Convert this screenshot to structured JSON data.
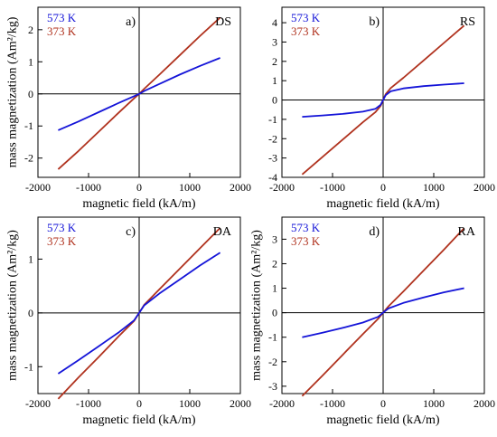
{
  "colors": {
    "s573": "#1414d8",
    "s373": "#b0321e",
    "axis": "#000000"
  },
  "chart_data": [
    {
      "type": "line",
      "letter": "a)",
      "code": "DS",
      "xlabel": "magnetic field (kA/m)",
      "ylabel": "mass magnetization (Am²/kg)",
      "xlim": [
        -2000,
        2000
      ],
      "ylim": [
        -2.6,
        2.7
      ],
      "xticks": [
        -2000,
        -1000,
        0,
        1000,
        2000
      ],
      "yticks": [
        -2,
        -1,
        0,
        1,
        2
      ],
      "series": [
        {
          "name": "573 K",
          "x": [
            -1600,
            -1200,
            -800,
            -400,
            -100,
            0,
            100,
            400,
            800,
            1200,
            1600
          ],
          "y": [
            -1.13,
            -0.86,
            -0.57,
            -0.28,
            -0.07,
            0,
            0.09,
            0.31,
            0.6,
            0.87,
            1.12
          ]
        },
        {
          "name": "373 K",
          "x": [
            -1600,
            -1200,
            -800,
            -400,
            -100,
            0,
            100,
            400,
            800,
            1200,
            1600
          ],
          "y": [
            -2.35,
            -1.78,
            -1.18,
            -0.58,
            -0.14,
            0,
            0.16,
            0.6,
            1.2,
            1.8,
            2.38
          ]
        }
      ]
    },
    {
      "type": "line",
      "letter": "b)",
      "code": "RS",
      "xlabel": "magnetic field (kA/m)",
      "ylabel": "",
      "xlim": [
        -2000,
        2000
      ],
      "ylim": [
        -4,
        4.8
      ],
      "xticks": [
        -2000,
        -1000,
        0,
        1000,
        2000
      ],
      "yticks": [
        -4,
        -3,
        -2,
        -1,
        0,
        1,
        2,
        3,
        4
      ],
      "series": [
        {
          "name": "573 K",
          "x": [
            -1600,
            -1200,
            -800,
            -400,
            -150,
            -50,
            0,
            50,
            150,
            400,
            800,
            1200,
            1600
          ],
          "y": [
            -0.87,
            -0.8,
            -0.72,
            -0.6,
            -0.45,
            -0.25,
            0,
            0.25,
            0.45,
            0.6,
            0.72,
            0.8,
            0.87
          ]
        },
        {
          "name": "373 K",
          "x": [
            -1600,
            -1200,
            -800,
            -400,
            -150,
            -50,
            0,
            50,
            150,
            400,
            800,
            1200,
            1600
          ],
          "y": [
            -3.85,
            -2.95,
            -2.05,
            -1.15,
            -0.62,
            -0.3,
            0,
            0.3,
            0.62,
            1.15,
            2.05,
            2.95,
            3.85
          ]
        }
      ]
    },
    {
      "type": "line",
      "letter": "c)",
      "code": "DA",
      "xlabel": "magnetic field (kA/m)",
      "ylabel": "mass magnetization (Am²/kg)",
      "xlim": [
        -2000,
        2000
      ],
      "ylim": [
        -1.5,
        1.78
      ],
      "xticks": [
        -2000,
        -1000,
        0,
        1000,
        2000
      ],
      "yticks": [
        -1,
        0,
        1
      ],
      "series": [
        {
          "name": "573 K",
          "x": [
            -1600,
            -1200,
            -800,
            -400,
            -100,
            0,
            100,
            400,
            800,
            1200,
            1600
          ],
          "y": [
            -1.13,
            -0.88,
            -0.62,
            -0.36,
            -0.14,
            0,
            0.14,
            0.36,
            0.62,
            0.88,
            1.12
          ]
        },
        {
          "name": "373 K",
          "x": [
            -1600,
            -1200,
            -800,
            -400,
            -100,
            0,
            100,
            400,
            800,
            1200,
            1600
          ],
          "y": [
            -1.6,
            -1.2,
            -0.82,
            -0.43,
            -0.15,
            0,
            0.15,
            0.44,
            0.82,
            1.2,
            1.58
          ]
        }
      ]
    },
    {
      "type": "line",
      "letter": "d)",
      "code": "RA",
      "xlabel": "magnetic field (kA/m)",
      "ylabel": "mass magnetization (Am²/kg)",
      "xlim": [
        -2000,
        2000
      ],
      "ylim": [
        -3.3,
        3.9
      ],
      "xticks": [
        -2000,
        -1000,
        0,
        1000,
        2000
      ],
      "yticks": [
        -3,
        -2,
        -1,
        0,
        1,
        2,
        3
      ],
      "series": [
        {
          "name": "573 K",
          "x": [
            -1600,
            -1200,
            -800,
            -400,
            -100,
            0,
            100,
            400,
            800,
            1200,
            1600
          ],
          "y": [
            -1.0,
            -0.82,
            -0.62,
            -0.4,
            -0.17,
            0,
            0.17,
            0.4,
            0.62,
            0.83,
            1.0
          ]
        },
        {
          "name": "373 K",
          "x": [
            -1600,
            -1200,
            -800,
            -400,
            -100,
            0,
            100,
            400,
            800,
            1200,
            1600
          ],
          "y": [
            -3.4,
            -2.57,
            -1.72,
            -0.87,
            -0.25,
            0,
            0.25,
            0.87,
            1.72,
            2.57,
            3.45
          ]
        }
      ]
    }
  ]
}
